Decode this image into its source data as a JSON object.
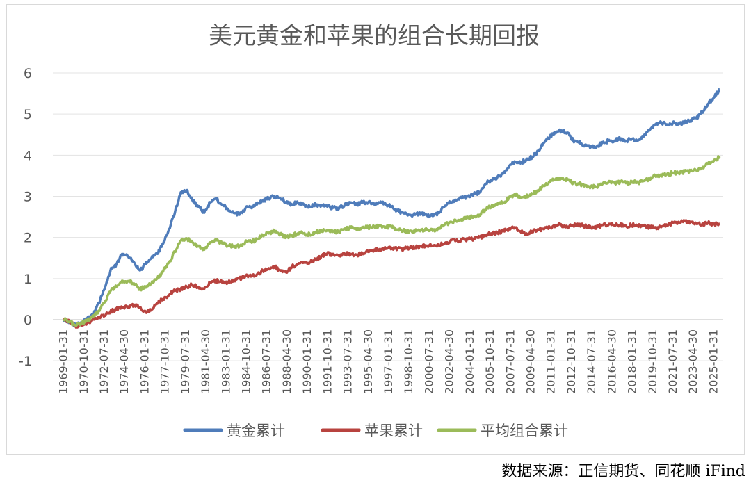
{
  "source_note": "数据来源：正信期货、同花顺 iFind",
  "chart_data": {
    "type": "line",
    "title": "美元黄金和苹果的组合长期回报",
    "xlabel": "",
    "ylabel": "",
    "ylim": [
      -1,
      6
    ],
    "yticks": [
      "-1",
      "0",
      "1",
      "2",
      "3",
      "4",
      "5",
      "6"
    ],
    "grid": true,
    "legend_position": "bottom",
    "x_tick_labels": [
      "1969-01-31",
      "1970-10-31",
      "1972-07-31",
      "1974-04-30",
      "1976-01-31",
      "1977-10-31",
      "1979-07-31",
      "1981-04-30",
      "1983-01-31",
      "1984-10-31",
      "1986-07-31",
      "1988-04-30",
      "1990-01-31",
      "1991-10-31",
      "1993-07-31",
      "1995-04-30",
      "1997-01-31",
      "1998-10-31",
      "2000-07-31",
      "2002-04-30",
      "2004-01-31",
      "2005-10-31",
      "2007-07-31",
      "2009-04-30",
      "2011-01-31",
      "2012-10-31",
      "2014-07-31",
      "2016-04-30",
      "2018-01-31",
      "2019-10-31",
      "2021-07-31",
      "2023-04-30",
      "2025-01-31"
    ],
    "x": [
      1970.0,
      1970.5,
      1971.0,
      1971.5,
      1972.0,
      1972.5,
      1973.0,
      1973.5,
      1974.0,
      1974.5,
      1975.0,
      1975.5,
      1976.0,
      1976.5,
      1977.0,
      1977.5,
      1978.0,
      1978.5,
      1979.0,
      1979.5,
      1980.0,
      1980.5,
      1981.0,
      1981.5,
      1982.0,
      1982.5,
      1983.0,
      1983.5,
      1984.0,
      1984.5,
      1985.0,
      1985.5,
      1986.0,
      1986.5,
      1987.0,
      1987.5,
      1988.0,
      1988.5,
      1989.0,
      1989.5,
      1990.0,
      1990.5,
      1991.0,
      1991.5,
      1992.0,
      1992.5,
      1993.0,
      1993.5,
      1994.0,
      1994.5,
      1995.0,
      1995.5,
      1996.0,
      1996.5,
      1997.0,
      1997.5,
      1998.0,
      1998.5,
      1999.0,
      1999.5,
      2000.0,
      2000.5,
      2001.0,
      2001.5,
      2002.0,
      2002.5,
      2003.0,
      2003.5,
      2004.0,
      2004.5,
      2005.0,
      2005.5,
      2006.0,
      2006.5,
      2007.0,
      2007.5,
      2008.0,
      2008.5,
      2009.0,
      2009.5,
      2010.0,
      2010.5,
      2011.0,
      2011.5,
      2012.0,
      2012.5,
      2013.0,
      2013.5,
      2014.0,
      2014.5,
      2015.0,
      2015.5,
      2016.0,
      2016.5,
      2017.0,
      2017.5,
      2018.0,
      2018.5,
      2019.0,
      2019.5,
      2020.0,
      2020.5,
      2021.0,
      2021.5,
      2022.0,
      2022.5,
      2023.0,
      2023.5,
      2024.0,
      2024.5,
      2025.0,
      2025.5,
      2026.0
    ],
    "series": [
      {
        "name": "黄金累计",
        "color": "#4f7cba",
        "values": [
          0.0,
          -0.05,
          -0.12,
          -0.08,
          0.02,
          0.12,
          0.4,
          0.75,
          1.2,
          1.35,
          1.6,
          1.55,
          1.4,
          1.2,
          1.35,
          1.5,
          1.6,
          1.85,
          2.2,
          2.6,
          3.1,
          3.15,
          2.9,
          2.75,
          2.6,
          2.85,
          2.95,
          2.8,
          2.7,
          2.6,
          2.55,
          2.7,
          2.75,
          2.8,
          2.9,
          2.95,
          3.0,
          2.95,
          2.85,
          2.8,
          2.85,
          2.8,
          2.75,
          2.8,
          2.78,
          2.75,
          2.72,
          2.7,
          2.8,
          2.85,
          2.8,
          2.85,
          2.85,
          2.82,
          2.85,
          2.8,
          2.75,
          2.65,
          2.6,
          2.55,
          2.55,
          2.6,
          2.55,
          2.52,
          2.6,
          2.75,
          2.85,
          2.9,
          2.95,
          3.0,
          3.05,
          3.1,
          3.3,
          3.4,
          3.45,
          3.55,
          3.7,
          3.85,
          3.8,
          3.9,
          3.95,
          4.1,
          4.3,
          4.45,
          4.55,
          4.6,
          4.55,
          4.35,
          4.3,
          4.25,
          4.2,
          4.2,
          4.3,
          4.35,
          4.35,
          4.4,
          4.35,
          4.4,
          4.35,
          4.45,
          4.6,
          4.75,
          4.8,
          4.75,
          4.78,
          4.75,
          4.8,
          4.85,
          4.9,
          5.05,
          5.25,
          5.4,
          5.6
        ]
      },
      {
        "name": "苹果累计",
        "color": "#b8433f",
        "values": [
          0.0,
          -0.05,
          -0.15,
          -0.12,
          -0.08,
          0.0,
          0.05,
          0.1,
          0.2,
          0.25,
          0.3,
          0.32,
          0.35,
          0.3,
          0.2,
          0.25,
          0.4,
          0.5,
          0.6,
          0.7,
          0.75,
          0.8,
          0.85,
          0.8,
          0.75,
          0.9,
          0.95,
          0.92,
          0.9,
          0.95,
          1.0,
          1.05,
          1.05,
          1.1,
          1.2,
          1.25,
          1.3,
          1.2,
          1.15,
          1.3,
          1.35,
          1.4,
          1.4,
          1.45,
          1.55,
          1.6,
          1.6,
          1.55,
          1.6,
          1.6,
          1.58,
          1.62,
          1.65,
          1.7,
          1.72,
          1.72,
          1.75,
          1.72,
          1.72,
          1.75,
          1.75,
          1.78,
          1.8,
          1.8,
          1.82,
          1.85,
          1.9,
          1.92,
          1.95,
          1.95,
          1.97,
          2.0,
          2.05,
          2.1,
          2.12,
          2.15,
          2.2,
          2.25,
          2.15,
          2.1,
          2.15,
          2.2,
          2.2,
          2.25,
          2.3,
          2.3,
          2.25,
          2.3,
          2.3,
          2.28,
          2.25,
          2.25,
          2.3,
          2.3,
          2.3,
          2.3,
          2.28,
          2.3,
          2.3,
          2.28,
          2.25,
          2.25,
          2.25,
          2.3,
          2.35,
          2.38,
          2.4,
          2.38,
          2.35,
          2.32,
          2.35,
          2.32,
          2.33
        ]
      },
      {
        "name": "平均组合累计",
        "color": "#9bbb59",
        "values": [
          0.0,
          -0.05,
          -0.13,
          -0.1,
          -0.03,
          0.06,
          0.22,
          0.42,
          0.7,
          0.8,
          0.95,
          0.94,
          0.88,
          0.75,
          0.78,
          0.88,
          1.0,
          1.18,
          1.4,
          1.65,
          1.92,
          1.98,
          1.88,
          1.78,
          1.7,
          1.88,
          1.95,
          1.86,
          1.8,
          1.78,
          1.78,
          1.88,
          1.9,
          1.95,
          2.05,
          2.1,
          2.15,
          2.08,
          2.0,
          2.05,
          2.1,
          2.1,
          2.08,
          2.12,
          2.17,
          2.18,
          2.16,
          2.13,
          2.2,
          2.23,
          2.19,
          2.24,
          2.25,
          2.26,
          2.29,
          2.26,
          2.25,
          2.19,
          2.16,
          2.15,
          2.15,
          2.19,
          2.18,
          2.16,
          2.21,
          2.3,
          2.38,
          2.41,
          2.45,
          2.48,
          2.51,
          2.55,
          2.68,
          2.75,
          2.79,
          2.85,
          2.95,
          3.05,
          2.98,
          3.0,
          3.05,
          3.15,
          3.25,
          3.35,
          3.43,
          3.45,
          3.4,
          3.33,
          3.3,
          3.27,
          3.23,
          3.23,
          3.3,
          3.33,
          3.33,
          3.35,
          3.32,
          3.35,
          3.33,
          3.37,
          3.43,
          3.5,
          3.52,
          3.53,
          3.57,
          3.57,
          3.6,
          3.62,
          3.63,
          3.69,
          3.8,
          3.86,
          3.97
        ]
      }
    ]
  }
}
